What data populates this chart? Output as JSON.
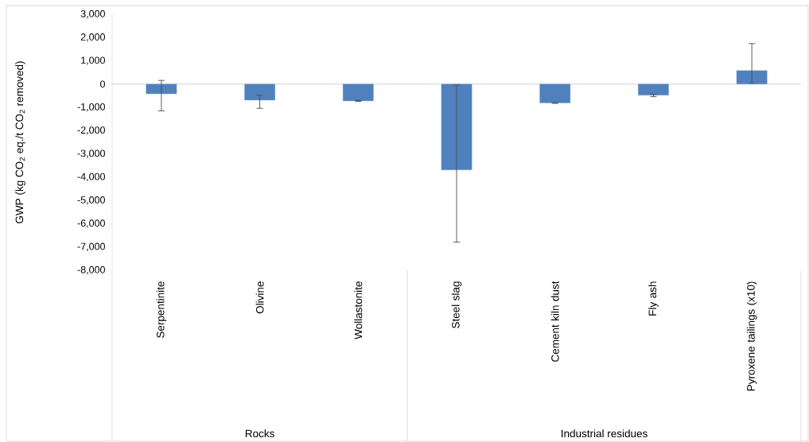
{
  "chart_data": {
    "type": "bar",
    "ylabel": "GWP (kg CO$_{2}$ eq./t CO$_{2}$ removed)",
    "categories": [
      "Serpentinite",
      "Olivine",
      "Wollastonite",
      "Steel slag",
      "Cement kiln dust",
      "Fly ash",
      "Pyroxene tailings (x10)"
    ],
    "values": [
      -420,
      -690,
      -720,
      -3690,
      -810,
      -480,
      580
    ],
    "errors": [
      [
        -1150,
        160
      ],
      [
        -1040,
        -480
      ],
      [
        -740,
        -700
      ],
      [
        -6790,
        -40
      ],
      [
        -830,
        -790
      ],
      [
        -540,
        -440
      ],
      [
        40,
        1740
      ]
    ],
    "color": "#4f81bd",
    "ylim": [
      -8000,
      3000
    ],
    "yticks": [
      {
        "value": -8000,
        "label": "-8,000"
      },
      {
        "value": -7000,
        "label": "-7,000"
      },
      {
        "value": -6000,
        "label": "-6,000"
      },
      {
        "value": -5000,
        "label": "-5,000"
      },
      {
        "value": -4000,
        "label": "-4,000"
      },
      {
        "value": -3000,
        "label": "-3,000"
      },
      {
        "value": -2000,
        "label": "-2,000"
      },
      {
        "value": -1000,
        "label": "-1,000"
      },
      0,
      {
        "value": 1000,
        "label": "1,000"
      },
      {
        "value": 2000,
        "label": "2,000"
      },
      {
        "value": 3000,
        "label": "3,000"
      }
    ],
    "annotations": [
      "Rocks",
      "Industrial residues"
    ]
  }
}
